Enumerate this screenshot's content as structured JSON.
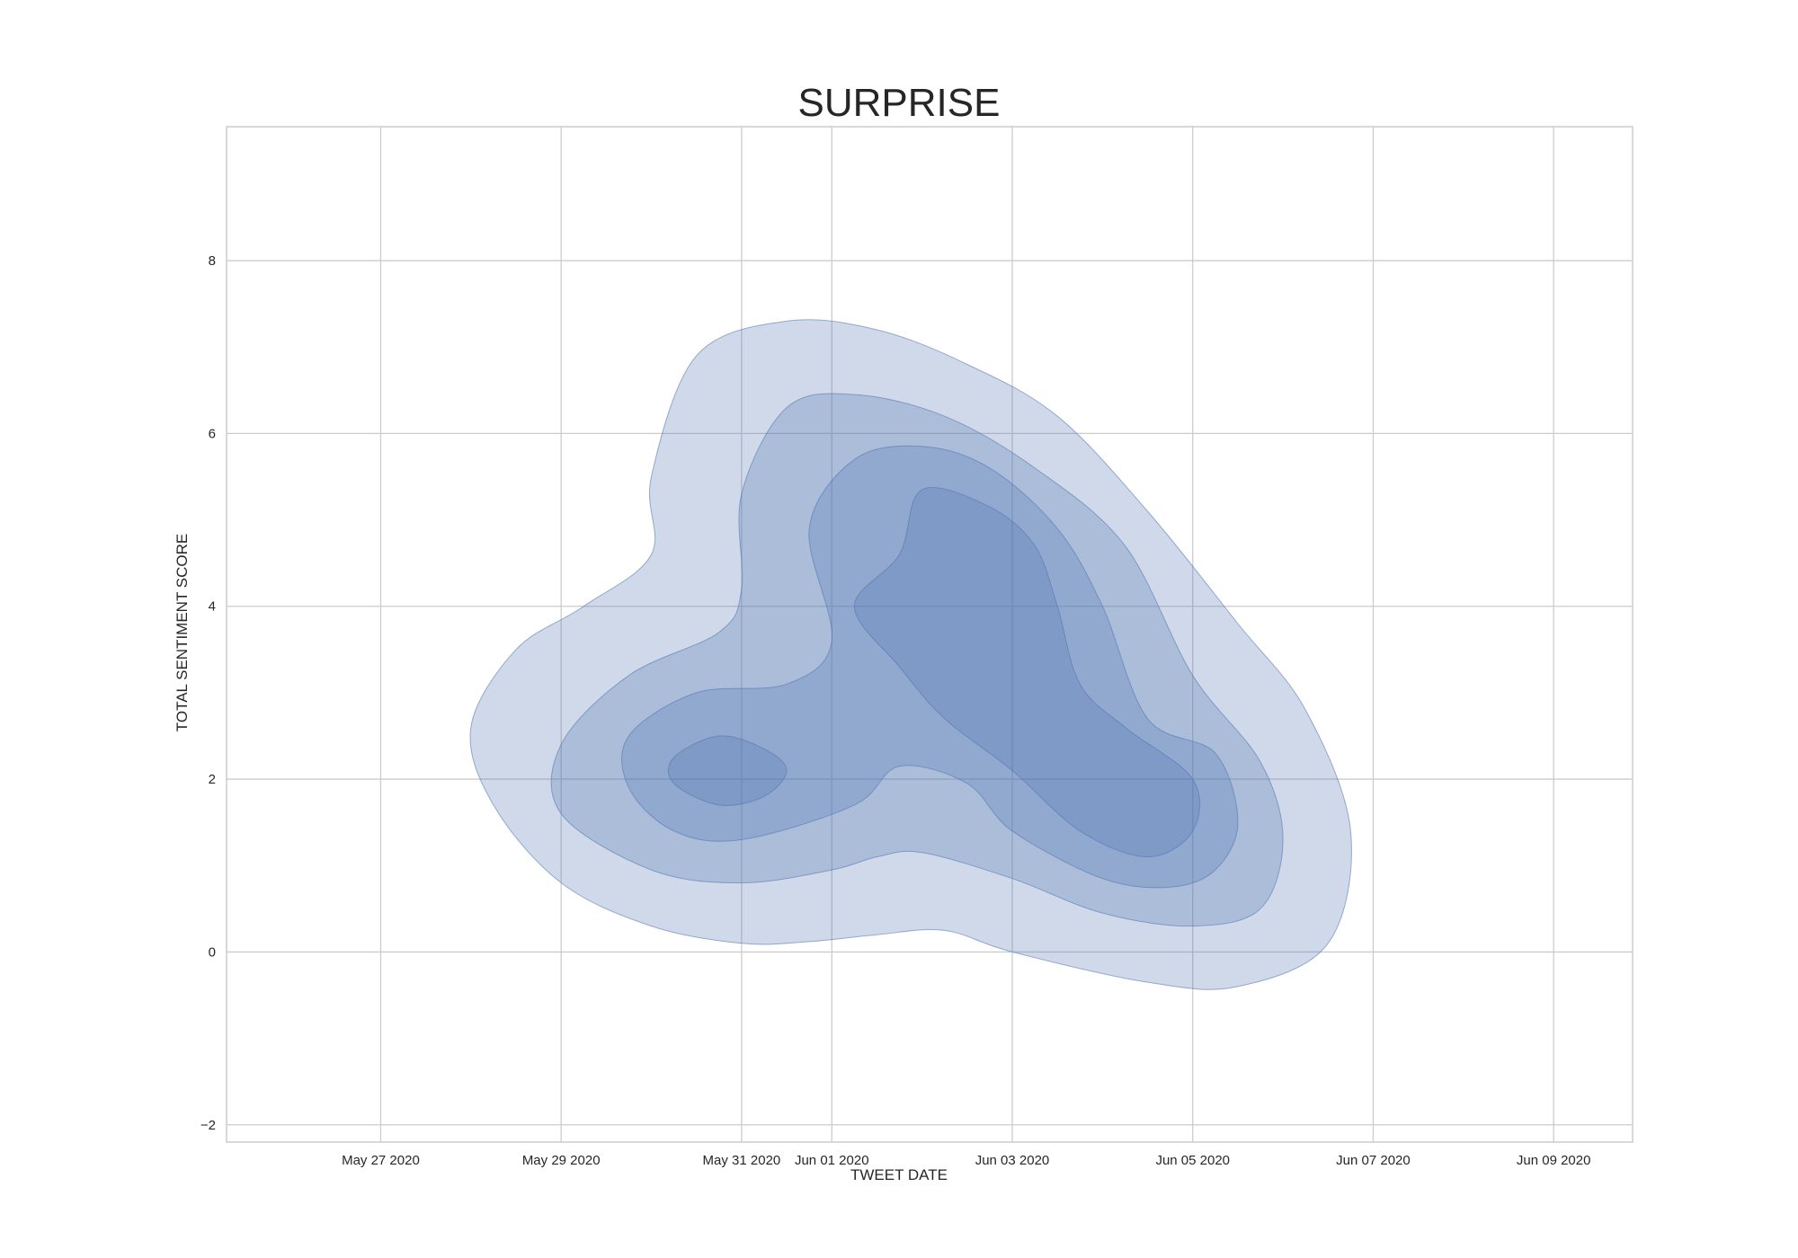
{
  "chart_data": {
    "type": "kde-contour",
    "title": "SURPRISE",
    "xlabel": "TWEET DATE",
    "ylabel": "TOTAL SENTIMENT SCORE",
    "x_ticks": [
      "May 27 2020",
      "May 29 2020",
      "May 31 2020",
      "Jun 01 2020",
      "Jun 03 2020",
      "Jun 05 2020",
      "Jun 07 2020",
      "Jun 09 2020"
    ],
    "y_ticks": [
      -2,
      0,
      2,
      4,
      6,
      8
    ],
    "xlim": [
      "2020-05-25 07:00",
      "2020-06-09 21:00"
    ],
    "ylim": [
      -2.2,
      9.55
    ],
    "grid": true,
    "fill_color": "#4c72b0",
    "levels": [
      {
        "level": 1,
        "points": [
          [
            "2020-05-30 00:00",
            5.5
          ],
          [
            "2020-05-30 12:00",
            6.9
          ],
          [
            "2020-05-31 12:00",
            7.3
          ],
          [
            "2020-06-01 12:00",
            7.2
          ],
          [
            "2020-06-02 12:00",
            6.8
          ],
          [
            "2020-06-03 12:00",
            6.2
          ],
          [
            "2020-06-04 12:00",
            5.1
          ],
          [
            "2020-06-05 12:00",
            3.8
          ],
          [
            "2020-06-06 06:00",
            2.8
          ],
          [
            "2020-06-06 18:00",
            1.4
          ],
          [
            "2020-06-06 12:00",
            0.1
          ],
          [
            "2020-06-05 12:00",
            -0.4
          ],
          [
            "2020-06-04 12:00",
            -0.35
          ],
          [
            "2020-06-03 00:00",
            0.0
          ],
          [
            "2020-06-02 06:00",
            0.25
          ],
          [
            "2020-06-01 12:00",
            0.2
          ],
          [
            "2020-05-31 18:00",
            0.12
          ],
          [
            "2020-05-31 00:00",
            0.1
          ],
          [
            "2020-05-30 00:00",
            0.3
          ],
          [
            "2020-05-29 00:00",
            0.8
          ],
          [
            "2020-05-28 06:00",
            1.7
          ],
          [
            "2020-05-28 00:00",
            2.6
          ],
          [
            "2020-05-28 12:00",
            3.5
          ],
          [
            "2020-05-29 06:00",
            4.0
          ],
          [
            "2020-05-30 00:00",
            4.6
          ]
        ]
      },
      {
        "level": 2,
        "points": [
          [
            "2020-05-31 00:00",
            5.3
          ],
          [
            "2020-05-31 12:00",
            6.3
          ],
          [
            "2020-06-01 06:00",
            6.45
          ],
          [
            "2020-06-02 06:00",
            6.2
          ],
          [
            "2020-06-03 06:00",
            5.6
          ],
          [
            "2020-06-04 06:00",
            4.7
          ],
          [
            "2020-06-05 00:00",
            3.2
          ],
          [
            "2020-06-05 18:00",
            2.2
          ],
          [
            "2020-06-06 00:00",
            1.3
          ],
          [
            "2020-06-05 18:00",
            0.5
          ],
          [
            "2020-06-05 00:00",
            0.3
          ],
          [
            "2020-06-04 00:00",
            0.45
          ],
          [
            "2020-06-03 00:00",
            0.85
          ],
          [
            "2020-06-02 00:00",
            1.15
          ],
          [
            "2020-06-01 12:00",
            1.1
          ],
          [
            "2020-06-01 00:00",
            0.95
          ],
          [
            "2020-05-31 00:00",
            0.8
          ],
          [
            "2020-05-30 00:00",
            0.95
          ],
          [
            "2020-05-29 00:00",
            1.6
          ],
          [
            "2020-05-29 00:00",
            2.4
          ],
          [
            "2020-05-29 18:00",
            3.2
          ],
          [
            "2020-05-30 18:00",
            3.7
          ],
          [
            "2020-05-31 00:00",
            4.2
          ]
        ]
      },
      {
        "level": 3,
        "points": [
          [
            "2020-05-31 18:00",
            4.9
          ],
          [
            "2020-06-01 06:00",
            5.7
          ],
          [
            "2020-06-02 00:00",
            5.85
          ],
          [
            "2020-06-02 18:00",
            5.6
          ],
          [
            "2020-06-03 12:00",
            4.9
          ],
          [
            "2020-06-04 00:00",
            4.0
          ],
          [
            "2020-06-04 12:00",
            2.7
          ],
          [
            "2020-06-05 06:00",
            2.3
          ],
          [
            "2020-06-05 12:00",
            1.5
          ],
          [
            "2020-06-05 06:00",
            0.95
          ],
          [
            "2020-06-04 18:00",
            0.75
          ],
          [
            "2020-06-04 00:00",
            0.85
          ],
          [
            "2020-06-03 00:00",
            1.4
          ],
          [
            "2020-06-02 12:00",
            1.95
          ],
          [
            "2020-06-01 18:00",
            2.15
          ],
          [
            "2020-06-01 06:00",
            1.7
          ],
          [
            "2020-05-31 00:00",
            1.3
          ],
          [
            "2020-05-30 06:00",
            1.4
          ],
          [
            "2020-05-29 18:00",
            1.9
          ],
          [
            "2020-05-29 18:00",
            2.5
          ],
          [
            "2020-05-30 12:00",
            3.0
          ],
          [
            "2020-05-31 12:00",
            3.1
          ],
          [
            "2020-06-01 00:00",
            3.6
          ]
        ]
      },
      {
        "level": 4,
        "points": [
          [
            "2020-06-01 18:00",
            4.6
          ],
          [
            "2020-06-02 00:00",
            5.35
          ],
          [
            "2020-06-02 18:00",
            5.15
          ],
          [
            "2020-06-03 06:00",
            4.7
          ],
          [
            "2020-06-03 12:00",
            4.0
          ],
          [
            "2020-06-03 18:00",
            3.1
          ],
          [
            "2020-06-04 06:00",
            2.6
          ],
          [
            "2020-06-05 00:00",
            2.0
          ],
          [
            "2020-06-05 00:00",
            1.4
          ],
          [
            "2020-06-04 12:00",
            1.1
          ],
          [
            "2020-06-03 18:00",
            1.4
          ],
          [
            "2020-06-03 00:00",
            2.1
          ],
          [
            "2020-06-02 06:00",
            2.7
          ],
          [
            "2020-06-01 18:00",
            3.3
          ],
          [
            "2020-06-01 06:00",
            4.0
          ]
        ]
      },
      {
        "level": 5,
        "points": [
          [
            "2020-05-30 06:00",
            2.25
          ],
          [
            "2020-05-30 18:00",
            2.5
          ],
          [
            "2020-05-31 06:00",
            2.35
          ],
          [
            "2020-05-31 12:00",
            2.1
          ],
          [
            "2020-05-31 06:00",
            1.8
          ],
          [
            "2020-05-30 18:00",
            1.7
          ],
          [
            "2020-05-30 06:00",
            1.95
          ]
        ]
      }
    ]
  }
}
